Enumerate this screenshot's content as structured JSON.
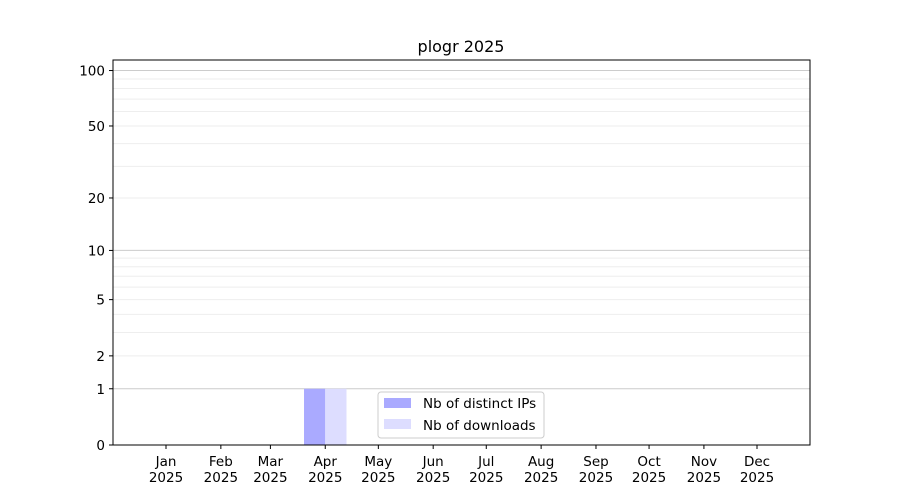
{
  "chart_data": {
    "type": "bar",
    "title": "plogr 2025",
    "xlabel": "",
    "ylabel": "",
    "y_scale": "log(1+y)",
    "ylim": [
      0,
      114
    ],
    "yticks": [
      0,
      1,
      2,
      5,
      10,
      20,
      50,
      100
    ],
    "ytick_labels": [
      "0",
      "1",
      "2",
      "5",
      "10",
      "20",
      "50",
      "100"
    ],
    "major_grid": [
      1,
      10,
      100
    ],
    "minor_grid": [
      2,
      3,
      4,
      5,
      6,
      7,
      8,
      9,
      20,
      30,
      40,
      50,
      60,
      70,
      80,
      90
    ],
    "grid": true,
    "categories": [
      "Jan\n2025",
      "Feb\n2025",
      "Mar\n2025",
      "Apr\n2025",
      "May\n2025",
      "Jun\n2025",
      "Jul\n2025",
      "Aug\n2025",
      "Sep\n2025",
      "Oct\n2025",
      "Nov\n2025",
      "Dec\n2025"
    ],
    "series": [
      {
        "name": "Nb of distinct IPs",
        "color": "#aaaaff",
        "values": [
          0,
          0,
          0,
          1,
          0,
          0,
          0,
          0,
          0,
          0,
          0,
          0
        ]
      },
      {
        "name": "Nb of downloads",
        "color": "#ddddff",
        "values": [
          0,
          0,
          0,
          1,
          0,
          0,
          0,
          0,
          0,
          0,
          0,
          0
        ]
      }
    ],
    "legend_placement": "lower-center"
  }
}
